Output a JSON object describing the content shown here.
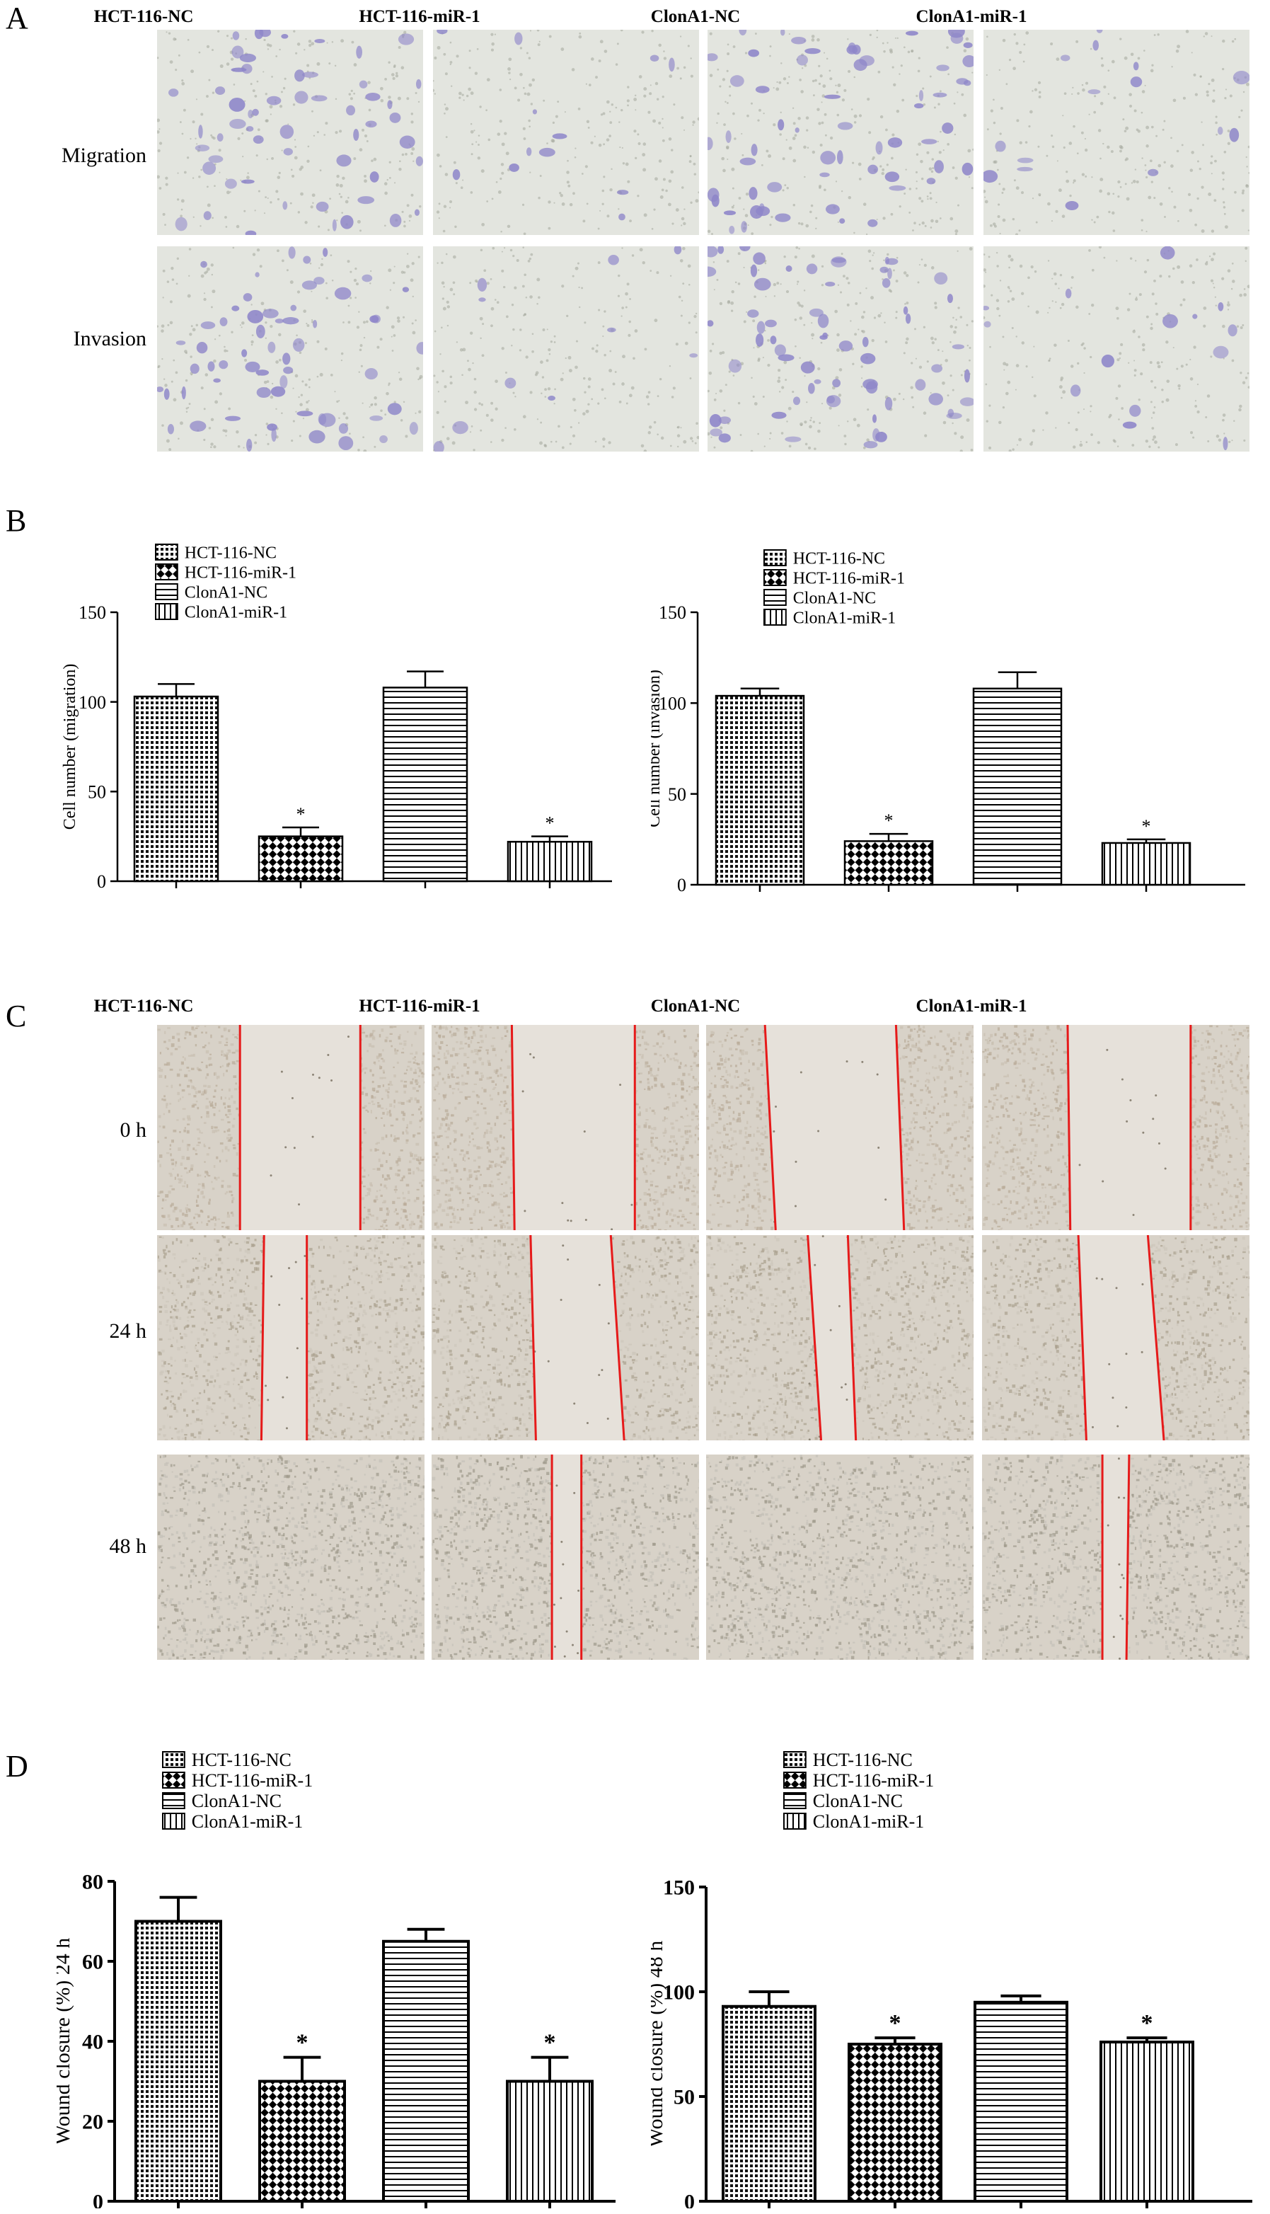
{
  "panels": {
    "A": "A",
    "B": "B",
    "C": "C",
    "D": "D"
  },
  "groups": [
    "HCT-116-NC",
    "HCT-116-miR-1",
    "ClonA1-NC",
    "ClonA1-miR-1"
  ],
  "panel_A": {
    "rows": [
      "Migration",
      "Invasion"
    ],
    "stain_color": "#8e86c9",
    "background_color": "#e3e5df"
  },
  "panel_C": {
    "rows": [
      "0 h",
      "24 h",
      "48 h"
    ],
    "line_color": "#e61a1a",
    "background_color": "#d8d2c8"
  },
  "chart_data": [
    {
      "type": "bar",
      "panel": "B",
      "categories": [
        "HCT-116-NC",
        "HCT-116-miR-1",
        "ClonA1-NC",
        "ClonA1-miR-1"
      ],
      "values": [
        103,
        25,
        108,
        22
      ],
      "errors": [
        7,
        5,
        9,
        3
      ],
      "significance": [
        "",
        "*",
        "",
        "*"
      ],
      "patterns": [
        "dots",
        "checker",
        "hstripes",
        "vstripes"
      ],
      "ylabel": "Cell number (migration)",
      "ylim": [
        0,
        150
      ],
      "yticks": [
        0,
        50,
        100,
        150
      ],
      "legend": [
        "HCT-116-NC",
        "HCT-116-miR-1",
        "ClonA1-NC",
        "ClonA1-miR-1"
      ],
      "legend_position": "top-left"
    },
    {
      "type": "bar",
      "panel": "B",
      "categories": [
        "HCT-116-NC",
        "HCT-116-miR-1",
        "ClonA1-NC",
        "ClonA1-miR-1"
      ],
      "values": [
        104,
        24,
        108,
        23
      ],
      "errors": [
        4,
        4,
        9,
        2
      ],
      "significance": [
        "",
        "*",
        "",
        "*"
      ],
      "patterns": [
        "dots",
        "checker",
        "hstripes",
        "vstripes"
      ],
      "ylabel": "Cell number (invasion)",
      "ylim": [
        0,
        150
      ],
      "yticks": [
        0,
        50,
        100,
        150
      ],
      "legend": [
        "HCT-116-NC",
        "HCT-116-miR-1",
        "ClonA1-NC",
        "ClonA1-miR-1"
      ],
      "legend_position": "top-left"
    },
    {
      "type": "bar",
      "panel": "D",
      "categories": [
        "HCT-116-NC",
        "HCT-116-miR-1",
        "ClonA1-NC",
        "ClonA1-miR-1"
      ],
      "values": [
        70,
        30,
        65,
        30
      ],
      "errors": [
        6,
        6,
        3,
        6
      ],
      "significance": [
        "",
        "*",
        "",
        "*"
      ],
      "patterns": [
        "dots",
        "checker",
        "hstripes",
        "vstripes"
      ],
      "ylabel": "Wound closure (%) 24 h",
      "ylim": [
        0,
        80
      ],
      "yticks": [
        0,
        20,
        40,
        60,
        80
      ],
      "legend": [
        "HCT-116-NC",
        "HCT-116-miR-1",
        "ClonA1-NC",
        "ClonA1-miR-1"
      ],
      "legend_position": "top-left"
    },
    {
      "type": "bar",
      "panel": "D",
      "categories": [
        "HCT-116-NC",
        "HCT-116-miR-1",
        "ClonA1-NC",
        "ClonA1-miR-1"
      ],
      "values": [
        93,
        75,
        95,
        76
      ],
      "errors": [
        7,
        3,
        3,
        2
      ],
      "significance": [
        "",
        "*",
        "",
        "*"
      ],
      "patterns": [
        "dots",
        "checker",
        "hstripes",
        "vstripes"
      ],
      "ylabel": "Wound closure (%) 48 h",
      "ylim": [
        0,
        150
      ],
      "yticks": [
        0,
        50,
        100,
        150
      ],
      "legend": [
        "HCT-116-NC",
        "HCT-116-miR-1",
        "ClonA1-NC",
        "ClonA1-miR-1"
      ],
      "legend_position": "top-left"
    }
  ]
}
